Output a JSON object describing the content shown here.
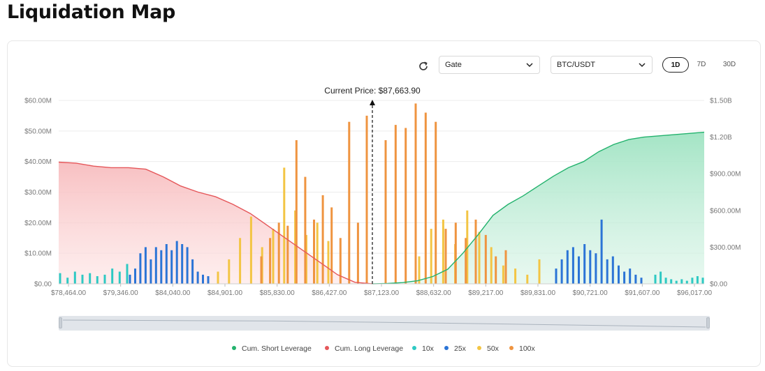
{
  "page": {
    "title": "Liquidation Map"
  },
  "toolbar": {
    "refresh_icon": "refresh-icon",
    "exchange": "Gate",
    "pair": "BTC/USDT",
    "tabs": [
      {
        "label": "1D",
        "active": true
      },
      {
        "label": "7D",
        "active": false
      },
      {
        "label": "30D",
        "active": false
      }
    ]
  },
  "colors": {
    "cum_short": "#23b26d",
    "cum_long": "#e5575a",
    "lev10": "#2ec9c3",
    "lev25": "#2b74d6",
    "lev50": "#f3c544",
    "lev100": "#ef9440"
  },
  "chart_data": {
    "type": "bar",
    "current_price_label": "Current Price: $87,663.90",
    "current_price": 87663.9,
    "x_tick_labels": [
      "$78,464.00",
      "$79,346.00",
      "$84,040.00",
      "$84,901.00",
      "$85,830.00",
      "$86,427.00",
      "$87,123.00",
      "$88,632.00",
      "$89,217.00",
      "$89,831.00",
      "$90,721.00",
      "$91,607.00",
      "$96,017.00"
    ],
    "y_left_ticks": [
      "$0.00",
      "$10.00M",
      "$20.00M",
      "$30.00M",
      "$40.00M",
      "$50.00M",
      "$60.00M"
    ],
    "y_right_ticks": [
      "$0.00",
      "$300.00M",
      "$600.00M",
      "$900.00M",
      "$1.20B",
      "$1.50B"
    ],
    "ylim_left": [
      0,
      60000000
    ],
    "ylim_right": [
      0,
      1500000000
    ],
    "grid": true,
    "series": [
      {
        "name": "Cum. Short Leverage",
        "type": "area",
        "axis": "right",
        "values_M": [
          0,
          3,
          10,
          25,
          60,
          120,
          250,
          400,
          560,
          650,
          720,
          800,
          880,
          950,
          1000,
          1080,
          1140,
          1180,
          1200,
          1210,
          1220,
          1230,
          1240
        ]
      },
      {
        "name": "Cum. Long Leverage",
        "type": "area",
        "axis": "left",
        "values_M": [
          39.8,
          39.5,
          38.5,
          38,
          38,
          37.5,
          35,
          32,
          30,
          28.5,
          26,
          23,
          19,
          15,
          11,
          7,
          3,
          0.5,
          0
        ]
      },
      {
        "name": "10x",
        "type": "bar",
        "axis": "left",
        "values_M": [
          3.5,
          2,
          4,
          3,
          3.5,
          2.5,
          3,
          5,
          4,
          6.5,
          3,
          4,
          2,
          1.5,
          1,
          1.5,
          1,
          2,
          2.5,
          2
        ]
      },
      {
        "name": "25x",
        "type": "bar",
        "axis": "left",
        "values_M": [
          3,
          5,
          10,
          12,
          8,
          12,
          11,
          13,
          11,
          14,
          13,
          12,
          8,
          4,
          3,
          2.5,
          5,
          8,
          11,
          12,
          9,
          13,
          11,
          10,
          21,
          8,
          9,
          6,
          4,
          5,
          3,
          2
        ]
      },
      {
        "name": "50x",
        "type": "bar",
        "axis": "left",
        "values_M": [
          4,
          8,
          15,
          22,
          12,
          18,
          38,
          24,
          16,
          20,
          14,
          9,
          18,
          21,
          13,
          24,
          17,
          12,
          6,
          5,
          3,
          8
        ]
      },
      {
        "name": "100x",
        "type": "bar",
        "axis": "left",
        "values_M": [
          9,
          15,
          20,
          19,
          47,
          35,
          21,
          29,
          25,
          15,
          53,
          20,
          55,
          47,
          52,
          51,
          59,
          56,
          53,
          18,
          20,
          15,
          21,
          16,
          9,
          11
        ]
      }
    ],
    "legend": [
      "Cum. Short Leverage",
      "Cum. Long Leverage",
      "10x",
      "25x",
      "50x",
      "100x"
    ]
  }
}
